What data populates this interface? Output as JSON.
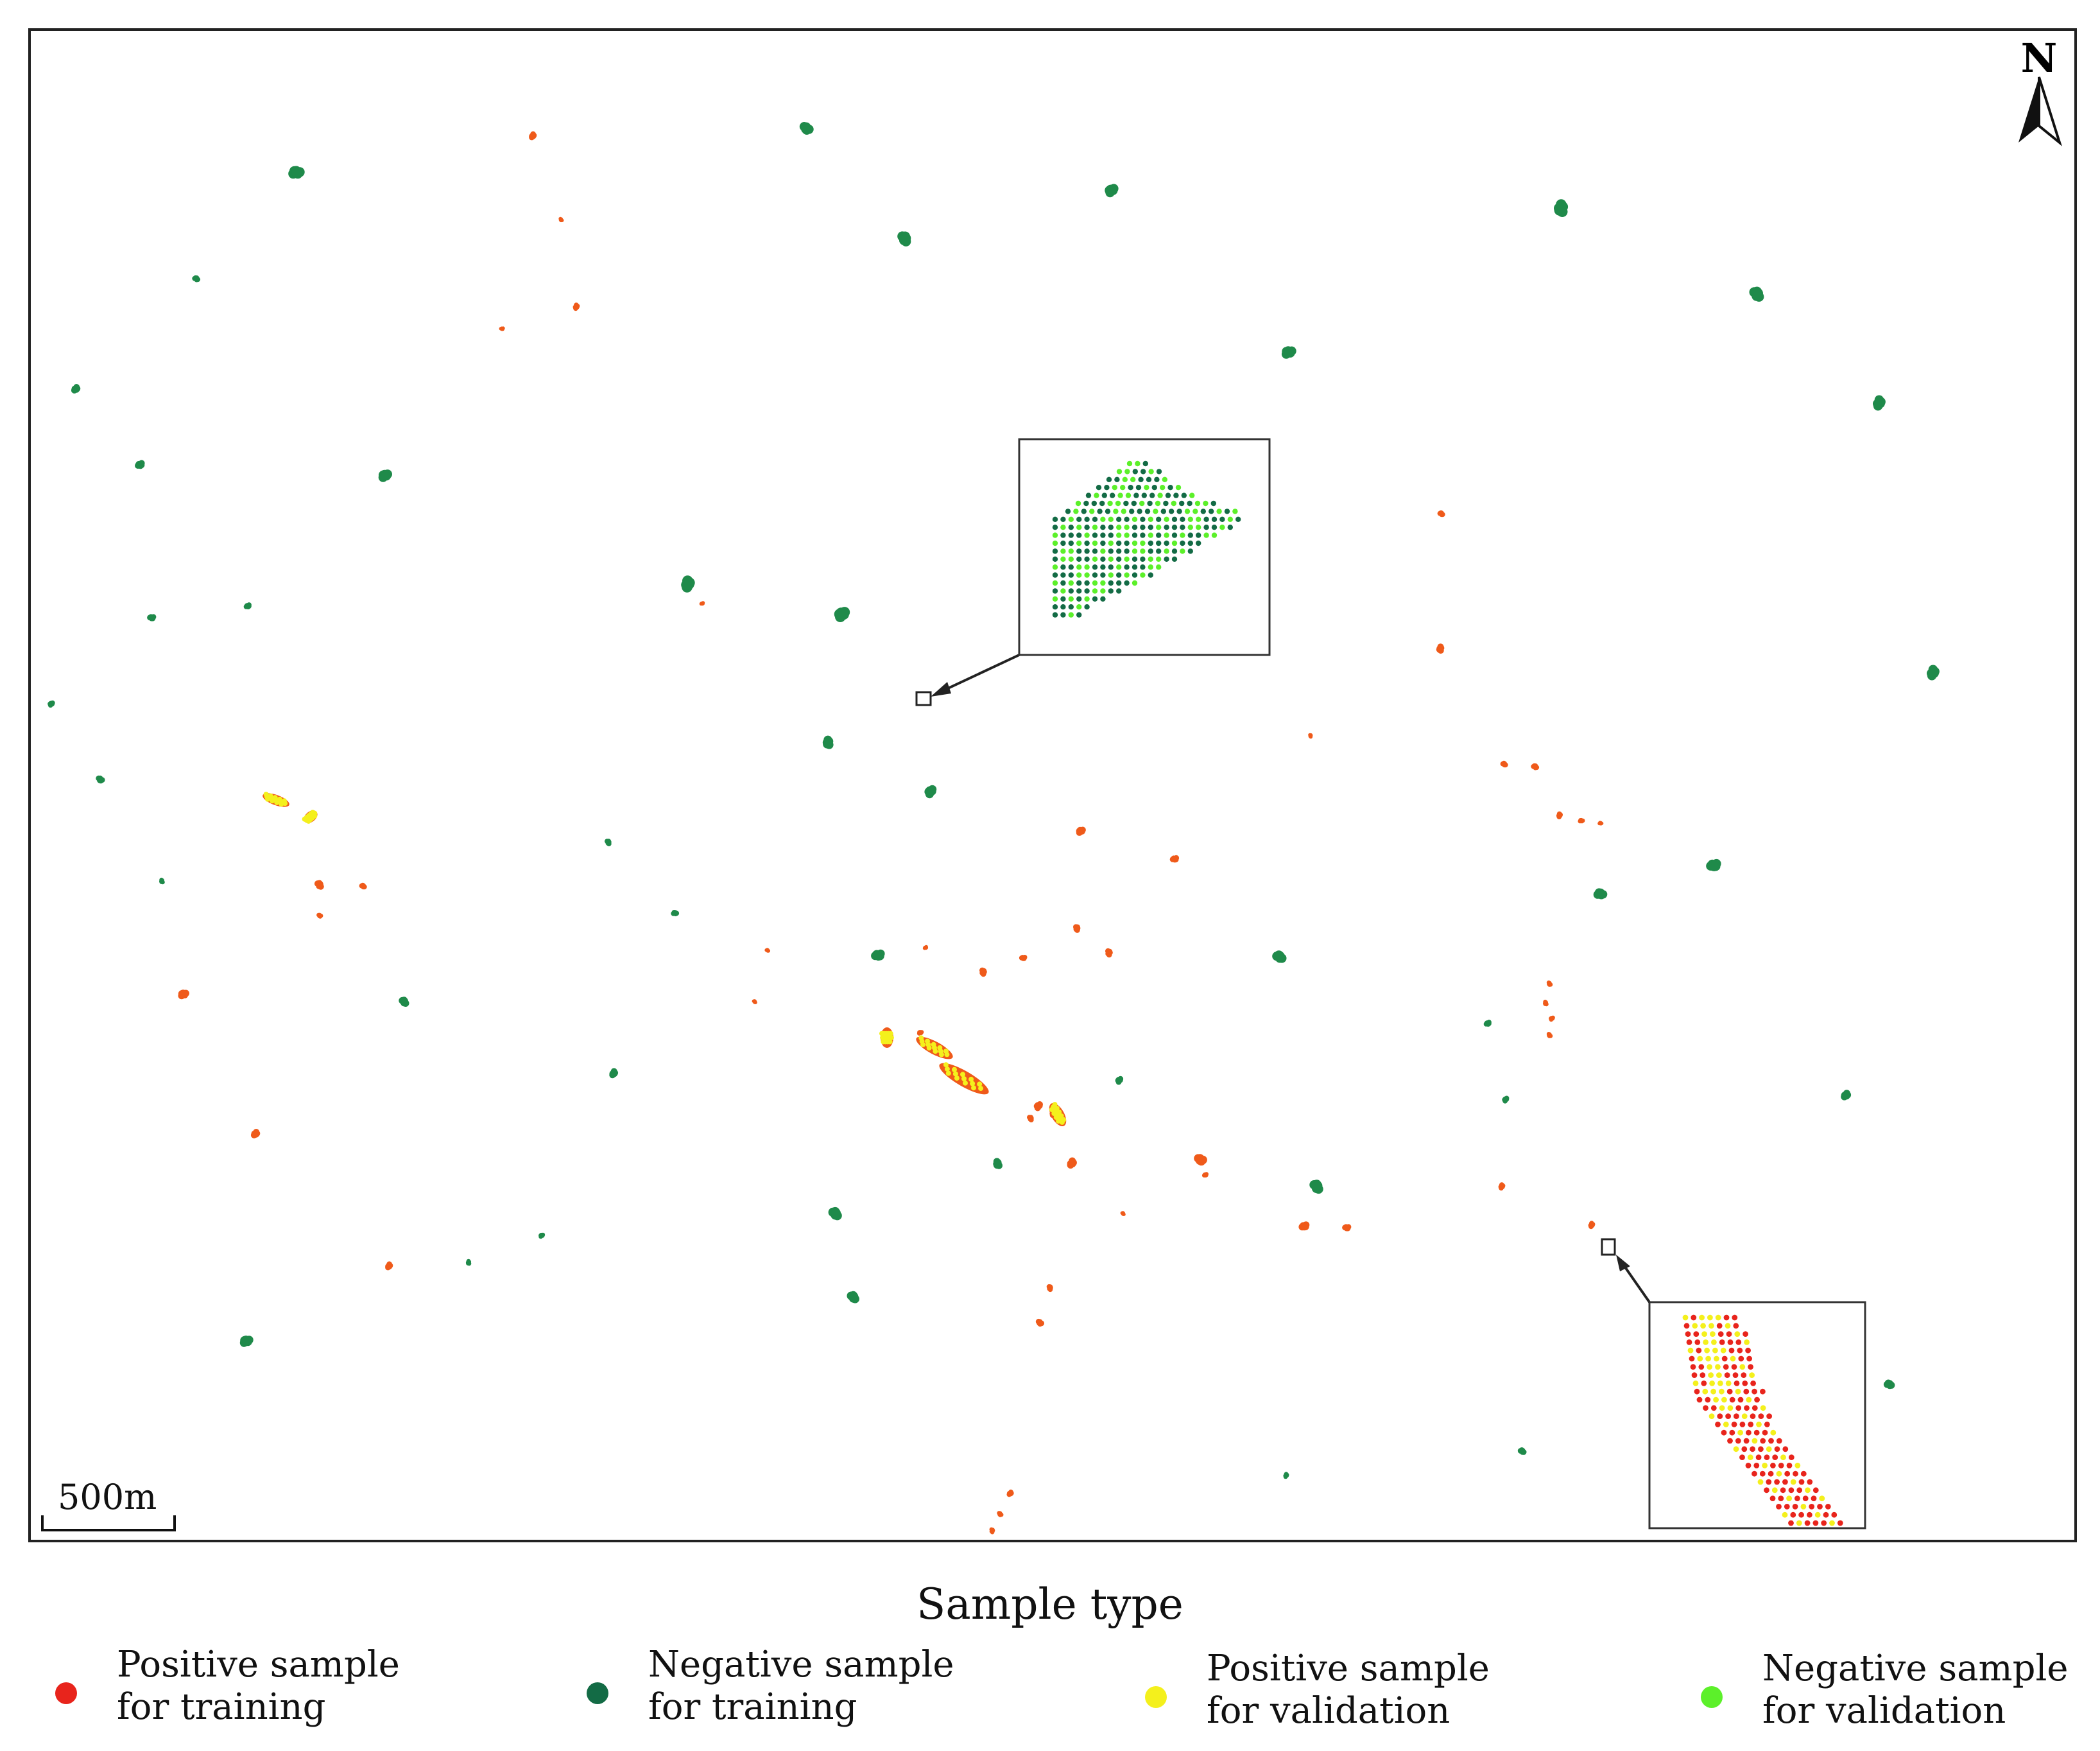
{
  "map": {
    "north_label": "N",
    "scale_label": "500m"
  },
  "legend": {
    "title": "Sample type",
    "items": [
      {
        "line1": "Positive sample",
        "line2": "for training",
        "color": "#e8241c"
      },
      {
        "line1": "Negative sample",
        "line2": "for training",
        "color": "#136b45"
      },
      {
        "line1": "Positive sample",
        "line2": "for validation",
        "color": "#f4f01c"
      },
      {
        "line1": "Negative sample",
        "line2": "for validation",
        "color": "#5cf02a"
      }
    ]
  },
  "colors": {
    "positive_training": "#e8241c",
    "negative_training": "#136b45",
    "positive_validation": "#f4f01c",
    "negative_validation": "#5cf02a",
    "positive_patch": "#ef5a1a",
    "negative_patch": "#1f8a4a"
  }
}
